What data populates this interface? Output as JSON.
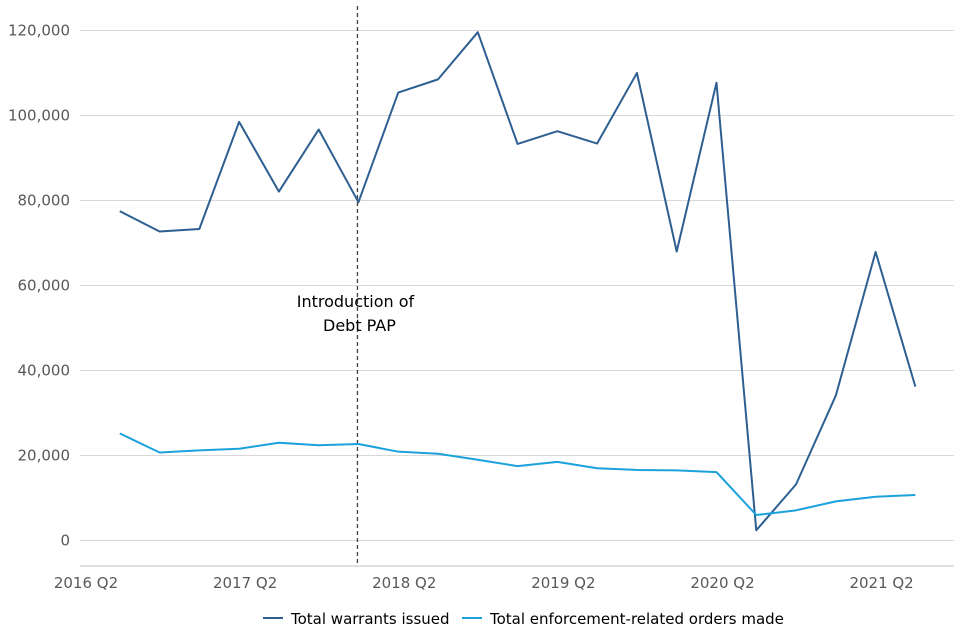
{
  "chart_data": {
    "type": "line",
    "x": [
      "2016 Q3",
      "2016 Q4",
      "2017 Q1",
      "2017 Q2",
      "2017 Q3",
      "2017 Q4",
      "2018 Q1",
      "2018 Q2",
      "2018 Q3",
      "2018 Q4",
      "2019 Q1",
      "2019 Q2",
      "2019 Q3",
      "2019 Q4",
      "2020 Q1",
      "2020 Q2",
      "2020 Q3",
      "2020 Q4",
      "2021 Q1",
      "2021 Q2",
      "2021 Q3"
    ],
    "series": [
      {
        "name": "Total warrants issued",
        "color": "#2e5f91",
        "values": [
          77500,
          72700,
          73300,
          98500,
          82100,
          96700,
          79600,
          105400,
          108500,
          119600,
          93300,
          96300,
          93400,
          110000,
          68000,
          107700,
          2400,
          13200,
          34100,
          67900,
          36200
        ]
      },
      {
        "name": "Total enforcement-related orders made",
        "color": "#1ba1dc",
        "values": [
          25200,
          20700,
          21200,
          21600,
          23000,
          22400,
          22700,
          20900,
          20400,
          19000,
          17500,
          18500,
          17000,
          16600,
          16500,
          16100,
          6000,
          7100,
          9200,
          10300,
          10700
        ]
      }
    ],
    "x_tick_labels": [
      "2016 Q2",
      "2017 Q2",
      "2018 Q2",
      "2019 Q2",
      "2020 Q2",
      "2021 Q2"
    ],
    "y_tick_labels": [
      "0",
      "20,000",
      "40,000",
      "60,000",
      "80,000",
      "100,000",
      "120,000"
    ],
    "y_ticks": [
      0,
      20000,
      40000,
      60000,
      80000,
      100000,
      120000
    ],
    "ylim": [
      -6000,
      126000
    ],
    "grid": true,
    "legend_position": "bottom-center",
    "annotation": {
      "text_line1": "Introduction of",
      "text_line2": "Debt PAP",
      "at_x": "2018 Q1"
    },
    "title": "",
    "xlabel": "",
    "ylabel": ""
  }
}
